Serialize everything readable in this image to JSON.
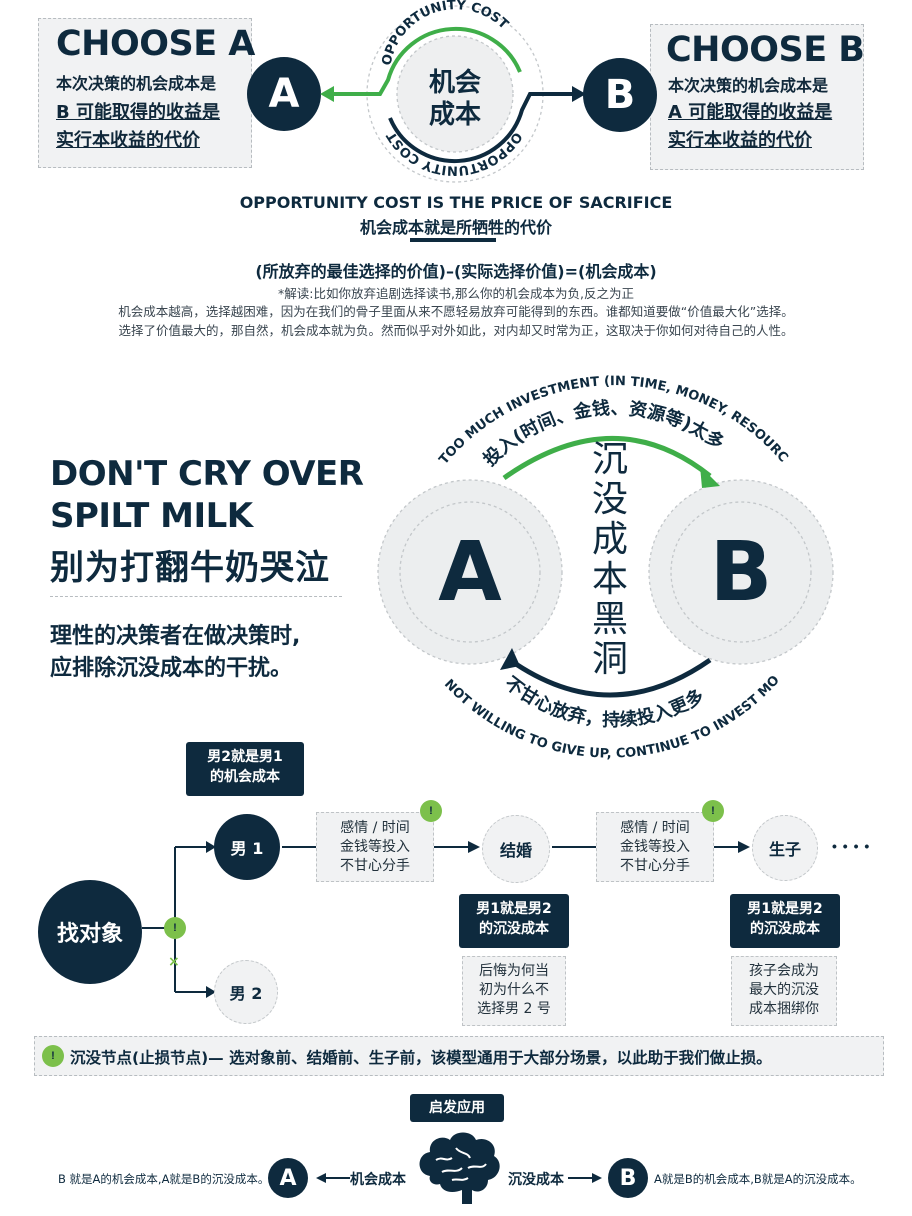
{
  "top": {
    "choose_a": {
      "title": "CHOOSE A",
      "line1": "本次决策的机会成本是",
      "line2": "B 可能取得的收益是",
      "line3": "实行本收益的代价",
      "circle": "A"
    },
    "choose_b": {
      "title": "CHOOSE B",
      "line1": "本次决策的机会成本是",
      "line2": "A 可能取得的收益是",
      "line3": "实行本收益的代价",
      "circle": "B"
    },
    "center_cn_1": "机会",
    "center_cn_2": "成本",
    "arc_top_text": "OPPORTUNITY COST",
    "arc_bottom_text": "OPPORTUNITY COST",
    "headline_en": "OPPORTUNITY COST IS THE PRICE OF SACRIFICE",
    "headline_cn": "机会成本就是所牺牲的代价",
    "formula": "(所放弃的最佳选择的价值)–(实际选择价值)=(机会成本)",
    "note": "*解读:比如你放弃追剧选择读书,那么你的机会成本为负,反之为正",
    "para1": "机会成本越高，选择越困难，因为在我们的骨子里面从来不愿轻易放弃可能得到的东西。谁都知道要做“价值最大化”选择。",
    "para2": "选择了价值最大的，那自然，机会成本就为负。然而似乎对外如此，对内却又时常为正，这取决于你如何对待自己的人性。"
  },
  "middle": {
    "title_line1": "DON'T CRY OVER",
    "title_line2": "SPILT MILK",
    "title_cn": "别为打翻牛奶哭泣",
    "sub_line1": "理性的决策者在做决策时,",
    "sub_line2": "应排除沉没成本的干扰。",
    "circle_a": "A",
    "circle_b": "B",
    "arc_outer_top": "TOO MUCH INVESTMENT (IN TIME, MONEY, RESOURCES, ETC)",
    "arc_inner_top": "投入(时间、金钱、资源等)太多",
    "vertical": [
      "沉",
      "没",
      "成",
      "本",
      "黑",
      "洞"
    ],
    "arc_inner_bottom": "不甘心放弃，持续投入更多",
    "arc_outer_bottom": "NOT WILLING TO GIVE UP, CONTINUE TO INVEST MORE"
  },
  "flow": {
    "root": "找对象",
    "man1": "男 1",
    "man2": "男 2",
    "man1_label_1": "男2就是男1",
    "man1_label_2": "的机会成本",
    "box1": [
      "感情 / 时间",
      "金钱等投入",
      "不甘心分手"
    ],
    "marry": "结婚",
    "box2": [
      "感情 / 时间",
      "金钱等投入",
      "不甘心分手"
    ],
    "child": "生子",
    "dots": "• • • •",
    "marry_label": [
      "男1就是男2",
      "的沉没成本"
    ],
    "marry_note": [
      "后悔为何当",
      "初为什么不",
      "选择男 2 号"
    ],
    "child_label": [
      "男1就是男2",
      "的沉没成本"
    ],
    "child_note": [
      "孩子会成为",
      "最大的沉没",
      "成本捆绑你"
    ],
    "footer": "沉没节点(止损节点)— 选对象前、结婚前、生子前，该模型通用于大部分场景，以此助于我们做止损。",
    "tri_icon": "warning-icon"
  },
  "bottom": {
    "tag": "启发应用",
    "left_text": "B 就是A的机会成本,A就是B的沉没成本。",
    "circle_a": "A",
    "opp": "机会成本",
    "sunk": "沉没成本",
    "circle_b": "B",
    "right_text": "A就是B的机会成本,B就是A的沉没成本。"
  },
  "colors": {
    "navy": "#0e2a3e",
    "green": "#3fae49",
    "grey_box": "#f1f2f3"
  }
}
